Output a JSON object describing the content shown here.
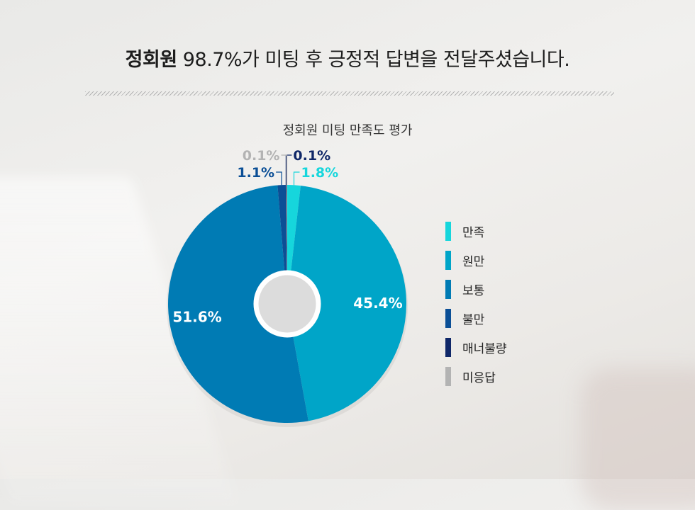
{
  "headline": {
    "bold": "정회원",
    "rest": " 98.7%가 미팅 후 긍정적 답변을 전달주셨습니다."
  },
  "chart_data": {
    "type": "pie",
    "title": "정회원 미팅 만족도 평가",
    "donut": true,
    "legend_position": "right",
    "categories": [
      "만족",
      "원만",
      "보통",
      "불만",
      "매너불량",
      "미응답"
    ],
    "values": [
      1.8,
      45.4,
      51.6,
      1.1,
      0.1,
      0.1
    ],
    "value_labels": [
      "1.8%",
      "45.4%",
      "51.6%",
      "1.1%",
      "0.1%",
      "0.1%"
    ],
    "colors": [
      "#16d6dc",
      "#00a5c8",
      "#007bb4",
      "#0b4f96",
      "#0f2768",
      "#b3b3b3"
    ]
  }
}
